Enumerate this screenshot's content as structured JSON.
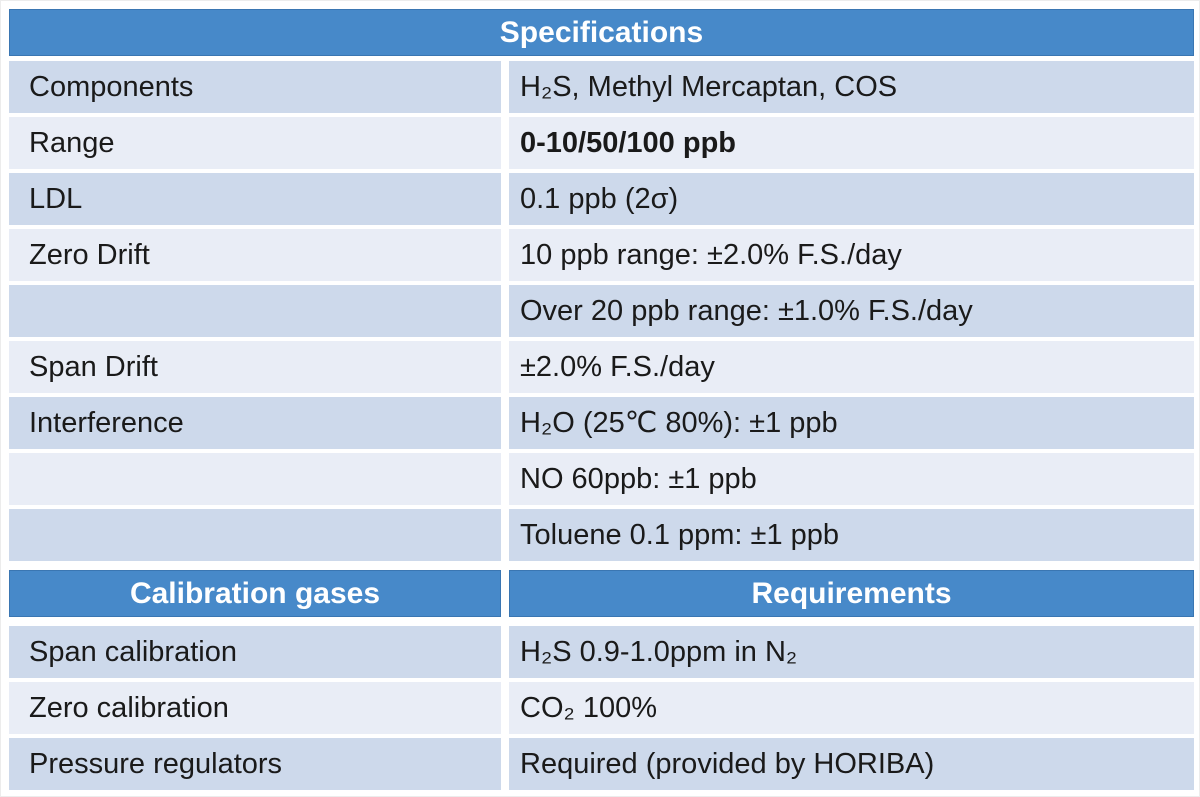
{
  "theme": {
    "header_bg": "#4789C9",
    "header_border": "#3A76B2",
    "band_dark": "#CDD9EB",
    "band_light": "#E9EDF6",
    "text_color": "#1A1A1A",
    "header_text_color": "#FFFFFF",
    "page_bg": "#FFFFFF"
  },
  "spec_section": {
    "title": "Specifications",
    "rows": [
      {
        "label": "Components",
        "value": "H₂S, Methyl Mercaptan, COS"
      },
      {
        "label": "Range",
        "value": "0-10/50/100 ppb"
      },
      {
        "label": "LDL",
        "value": "0.1 ppb (2σ)"
      },
      {
        "label": "Zero Drift",
        "value": "10 ppb range: ±2.0% F.S./day"
      },
      {
        "label": "",
        "value": "Over 20 ppb range: ±1.0% F.S./day"
      },
      {
        "label": "Span Drift",
        "value": "±2.0% F.S./day"
      },
      {
        "label": "Interference",
        "value": "H₂O (25℃ 80%): ±1 ppb"
      },
      {
        "label": "",
        "value": "NO 60ppb: ±1 ppb"
      },
      {
        "label": "",
        "value": "Toluene 0.1 ppm: ±1 ppb"
      }
    ]
  },
  "calibration_section": {
    "col1_header": "Calibration gases",
    "col2_header": "Requirements",
    "rows": [
      {
        "label": "Span calibration",
        "value": "H₂S 0.9-1.0ppm in N₂"
      },
      {
        "label": "Zero calibration",
        "value": "CO₂ 100%"
      },
      {
        "label": "Pressure regulators",
        "value": "Required (provided by HORIBA)"
      }
    ]
  }
}
